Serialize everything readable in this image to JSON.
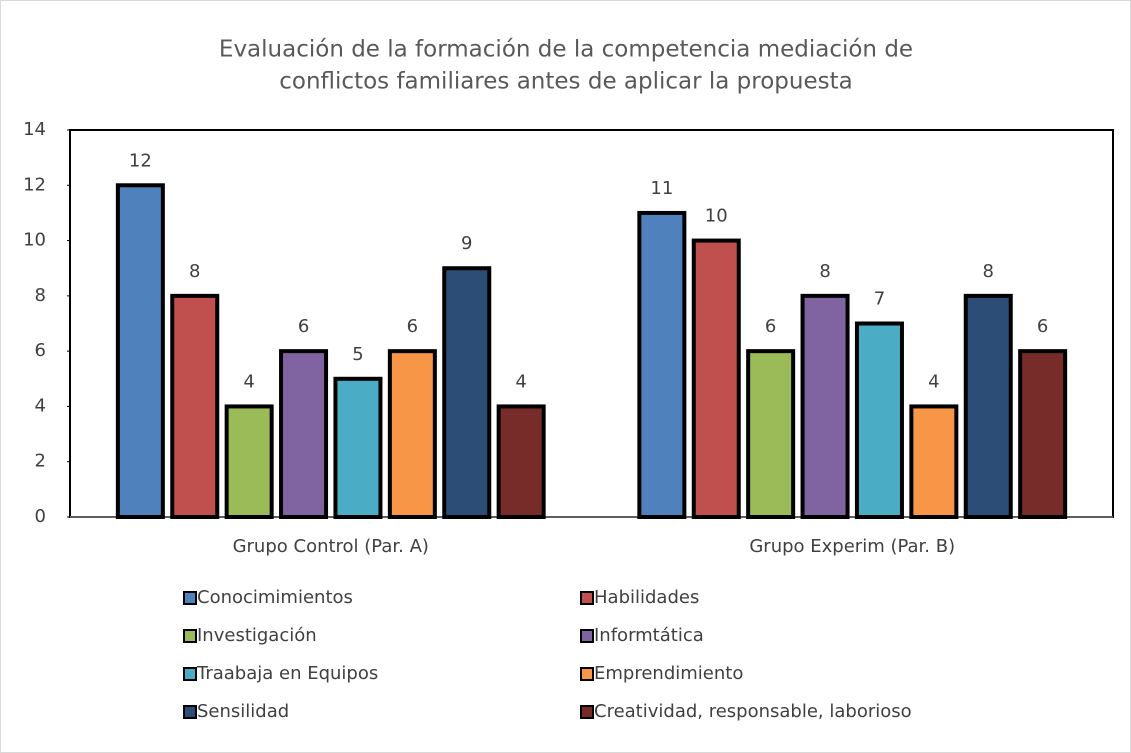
{
  "chart_data": {
    "type": "bar",
    "title": [
      "Evaluación de la formación de la competencia mediación de",
      "conflictos familiares antes de aplicar la propuesta"
    ],
    "categories": [
      "Grupo Control (Par. A)",
      "Grupo Experim (Par. B)"
    ],
    "series": [
      {
        "name": "Conocimimientos",
        "color": "#4f81bd",
        "values": [
          12,
          11
        ]
      },
      {
        "name": "Habilidades",
        "color": "#c0504d",
        "values": [
          8,
          10
        ]
      },
      {
        "name": "Investigación",
        "color": "#9bbb59",
        "values": [
          4,
          6
        ]
      },
      {
        "name": "Informtática",
        "color": "#8064a2",
        "values": [
          6,
          8
        ]
      },
      {
        "name": "Traabaja en Equipos",
        "color": "#4bacc6",
        "values": [
          5,
          7
        ]
      },
      {
        "name": "Emprendimiento",
        "color": "#f79646",
        "values": [
          6,
          4
        ]
      },
      {
        "name": "Sensilidad",
        "color": "#2c4d75",
        "values": [
          9,
          8
        ]
      },
      {
        "name": "Creatividad, responsable, laborioso",
        "color": "#772c2a",
        "values": [
          4,
          6
        ]
      }
    ],
    "ylim": [
      0,
      14
    ],
    "yticks": [
      0,
      2,
      4,
      6,
      8,
      10,
      12,
      14
    ],
    "grid": false,
    "legend": "bottom"
  }
}
